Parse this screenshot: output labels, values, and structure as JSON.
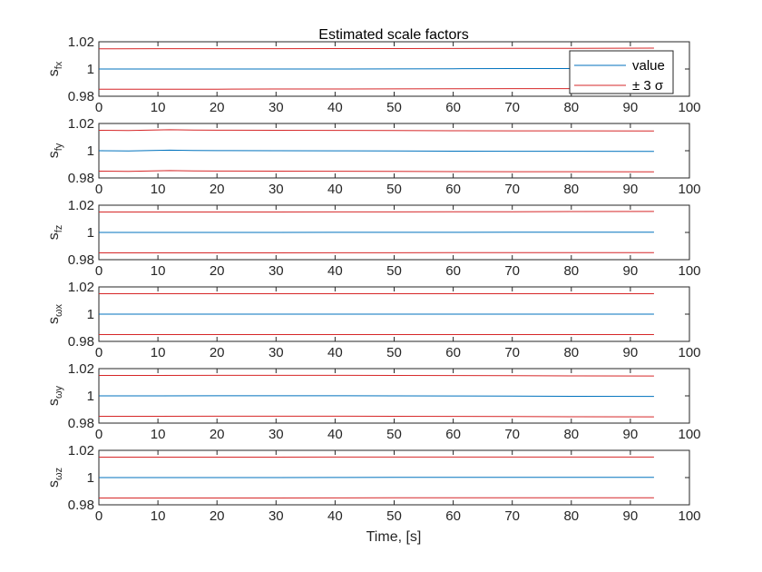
{
  "figure": {
    "title": "Estimated scale factors",
    "xlabel": "Time, [s]"
  },
  "legend": {
    "items": [
      {
        "label": "value",
        "color": "#0072BD"
      },
      {
        "label": "± 3 σ",
        "color": "#D62728"
      }
    ]
  },
  "colors": {
    "value": "#0072BD",
    "bound": "#D62728",
    "axis": "#262626"
  },
  "chart_data": [
    {
      "type": "line",
      "ylabel_main": "s",
      "ylabel_sub": "fx",
      "xlim": [
        0,
        100
      ],
      "ylim": [
        0.98,
        1.02
      ],
      "xticks": [
        "0",
        "10",
        "20",
        "30",
        "40",
        "50",
        "60",
        "70",
        "80",
        "90",
        "100"
      ],
      "yticks": [
        "0.98",
        "1",
        "1.02"
      ],
      "series": [
        {
          "role": "value",
          "x": [
            0,
            10,
            20,
            30,
            40,
            50,
            60,
            70,
            80,
            94
          ],
          "y": [
            1.0,
            1.0,
            1.0,
            1.0,
            1.0,
            1.0001,
            1.0002,
            1.0003,
            1.0003,
            1.0004
          ]
        },
        {
          "role": "upper",
          "x": [
            0,
            10,
            20,
            30,
            40,
            50,
            60,
            70,
            80,
            94
          ],
          "y": [
            1.0148,
            1.0149,
            1.0149,
            1.0149,
            1.015,
            1.015,
            1.0151,
            1.0152,
            1.0152,
            1.0153
          ]
        },
        {
          "role": "lower",
          "x": [
            0,
            10,
            20,
            30,
            40,
            50,
            60,
            70,
            80,
            94
          ],
          "y": [
            0.9852,
            0.9852,
            0.9852,
            0.9853,
            0.9853,
            0.9854,
            0.9855,
            0.9856,
            0.9856,
            0.9857
          ]
        }
      ]
    },
    {
      "type": "line",
      "ylabel_main": "s",
      "ylabel_sub": "fy",
      "xlim": [
        0,
        100
      ],
      "ylim": [
        0.98,
        1.02
      ],
      "xticks": [
        "0",
        "10",
        "20",
        "30",
        "40",
        "50",
        "60",
        "70",
        "80",
        "90",
        "100"
      ],
      "yticks": [
        "0.98",
        "1",
        "1.02"
      ],
      "series": [
        {
          "role": "value",
          "x": [
            0,
            5,
            8,
            12,
            16,
            20,
            30,
            40,
            50,
            60,
            70,
            80,
            94
          ],
          "y": [
            1.0,
            0.9998,
            1.0001,
            1.0004,
            1.0002,
            1.0001,
            1.0,
            0.9999,
            0.9998,
            0.9997,
            0.9996,
            0.9996,
            0.9995
          ]
        },
        {
          "role": "upper",
          "x": [
            0,
            5,
            8,
            12,
            16,
            20,
            30,
            40,
            50,
            60,
            70,
            80,
            94
          ],
          "y": [
            1.015,
            1.0148,
            1.0151,
            1.0154,
            1.0152,
            1.0151,
            1.015,
            1.0149,
            1.0148,
            1.0147,
            1.0146,
            1.0146,
            1.0145
          ]
        },
        {
          "role": "lower",
          "x": [
            0,
            5,
            8,
            12,
            16,
            20,
            30,
            40,
            50,
            60,
            70,
            80,
            94
          ],
          "y": [
            0.985,
            0.9848,
            0.9851,
            0.9854,
            0.9852,
            0.9851,
            0.985,
            0.9849,
            0.9848,
            0.9847,
            0.9846,
            0.9846,
            0.9845
          ]
        }
      ]
    },
    {
      "type": "line",
      "ylabel_main": "s",
      "ylabel_sub": "fz",
      "xlim": [
        0,
        100
      ],
      "ylim": [
        0.98,
        1.02
      ],
      "xticks": [
        "0",
        "10",
        "20",
        "30",
        "40",
        "50",
        "60",
        "70",
        "80",
        "90",
        "100"
      ],
      "yticks": [
        "0.98",
        "1",
        "1.02"
      ],
      "series": [
        {
          "role": "value",
          "x": [
            0,
            10,
            20,
            30,
            40,
            50,
            60,
            70,
            80,
            94
          ],
          "y": [
            1.0,
            1.0,
            1.0,
            1.0,
            1.0001,
            1.0001,
            1.0001,
            1.0002,
            1.0002,
            1.0002
          ]
        },
        {
          "role": "upper",
          "x": [
            0,
            10,
            20,
            30,
            40,
            50,
            60,
            70,
            80,
            94
          ],
          "y": [
            1.015,
            1.015,
            1.015,
            1.015,
            1.0151,
            1.0151,
            1.0152,
            1.0152,
            1.0153,
            1.0154
          ]
        },
        {
          "role": "lower",
          "x": [
            0,
            10,
            20,
            30,
            40,
            50,
            60,
            70,
            80,
            94
          ],
          "y": [
            0.985,
            0.985,
            0.985,
            0.985,
            0.9851,
            0.9851,
            0.9852,
            0.9852,
            0.9852,
            0.9852
          ]
        }
      ]
    },
    {
      "type": "line",
      "ylabel_main": "s",
      "ylabel_sub": "ωx",
      "xlim": [
        0,
        100
      ],
      "ylim": [
        0.98,
        1.02
      ],
      "xticks": [
        "0",
        "10",
        "20",
        "30",
        "40",
        "50",
        "60",
        "70",
        "80",
        "90",
        "100"
      ],
      "yticks": [
        "0.98",
        "1",
        "1.02"
      ],
      "series": [
        {
          "role": "value",
          "x": [
            0,
            94
          ],
          "y": [
            1.0,
            1.0
          ]
        },
        {
          "role": "upper",
          "x": [
            0,
            94
          ],
          "y": [
            1.015,
            1.015
          ]
        },
        {
          "role": "lower",
          "x": [
            0,
            94
          ],
          "y": [
            0.985,
            0.985
          ]
        }
      ]
    },
    {
      "type": "line",
      "ylabel_main": "s",
      "ylabel_sub": "ωy",
      "xlim": [
        0,
        100
      ],
      "ylim": [
        0.98,
        1.02
      ],
      "xticks": [
        "0",
        "10",
        "20",
        "30",
        "40",
        "50",
        "60",
        "70",
        "80",
        "90",
        "100"
      ],
      "yticks": [
        "0.98",
        "1",
        "1.02"
      ],
      "series": [
        {
          "role": "value",
          "x": [
            0,
            10,
            20,
            30,
            40,
            50,
            60,
            70,
            80,
            94
          ],
          "y": [
            1.0,
            1.0,
            1.0001,
            1.0001,
            1.0001,
            1.0,
            0.9999,
            0.9998,
            0.9997,
            0.9996
          ]
        },
        {
          "role": "upper",
          "x": [
            0,
            10,
            20,
            30,
            40,
            50,
            60,
            70,
            80,
            94
          ],
          "y": [
            1.015,
            1.015,
            1.0151,
            1.0151,
            1.0151,
            1.015,
            1.0149,
            1.0148,
            1.0147,
            1.0146
          ]
        },
        {
          "role": "lower",
          "x": [
            0,
            10,
            20,
            30,
            40,
            50,
            60,
            70,
            80,
            94
          ],
          "y": [
            0.985,
            0.985,
            0.9851,
            0.9851,
            0.9851,
            0.985,
            0.9849,
            0.9848,
            0.9847,
            0.9846
          ]
        }
      ]
    },
    {
      "type": "line",
      "ylabel_main": "s",
      "ylabel_sub": "ωz",
      "xlim": [
        0,
        100
      ],
      "ylim": [
        0.98,
        1.02
      ],
      "xticks": [
        "0",
        "10",
        "20",
        "30",
        "40",
        "50",
        "60",
        "70",
        "80",
        "90",
        "100"
      ],
      "yticks": [
        "0.98",
        "1",
        "1.02"
      ],
      "series": [
        {
          "role": "value",
          "x": [
            0,
            10,
            20,
            30,
            40,
            50,
            60,
            70,
            80,
            94
          ],
          "y": [
            1.0,
            1.0,
            1.0,
            1.0,
            1.0001,
            1.0002,
            1.0002,
            1.0002,
            1.0002,
            1.0002
          ]
        },
        {
          "role": "upper",
          "x": [
            0,
            10,
            20,
            30,
            40,
            50,
            60,
            70,
            80,
            94
          ],
          "y": [
            1.015,
            1.015,
            1.015,
            1.015,
            1.0151,
            1.0151,
            1.0151,
            1.0151,
            1.0151,
            1.0151
          ]
        },
        {
          "role": "lower",
          "x": [
            0,
            10,
            20,
            30,
            40,
            50,
            60,
            70,
            80,
            94
          ],
          "y": [
            0.985,
            0.985,
            0.985,
            0.985,
            0.9851,
            0.9852,
            0.9852,
            0.9852,
            0.9852,
            0.9852
          ]
        }
      ]
    }
  ]
}
